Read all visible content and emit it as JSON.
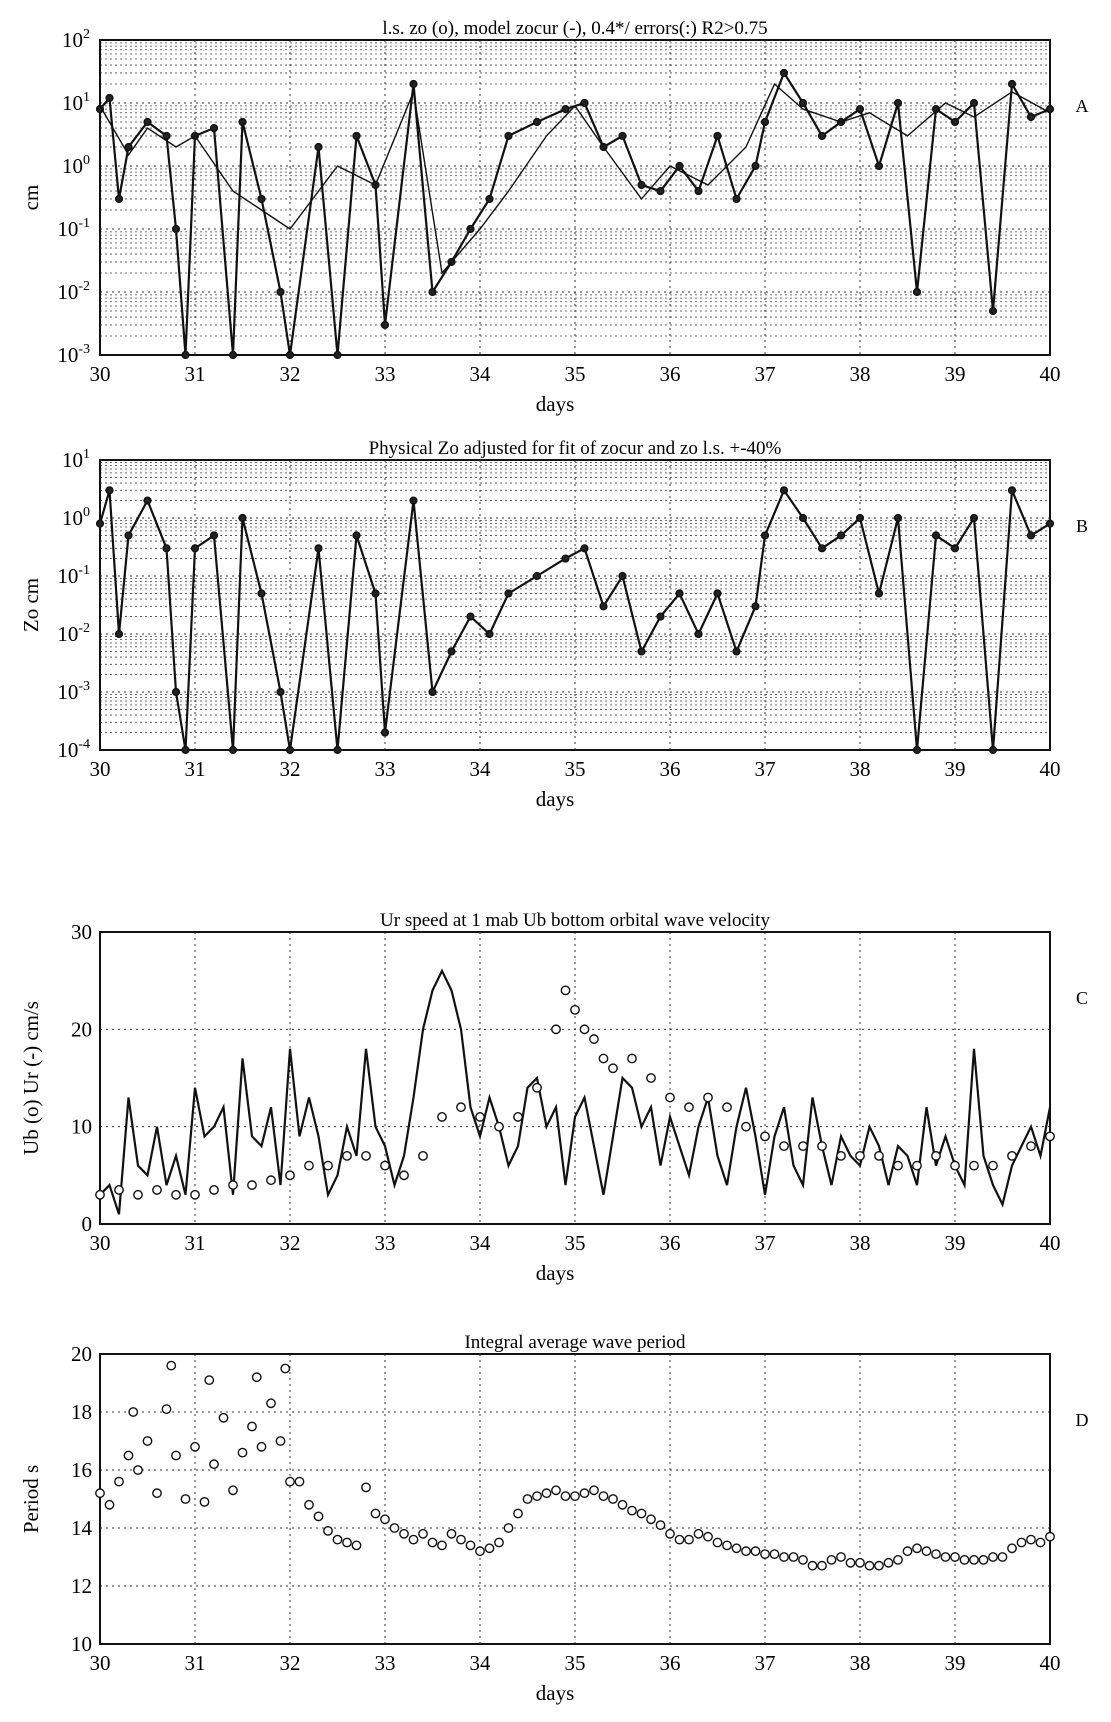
{
  "figure": {
    "panels": [
      {
        "id": "A",
        "letter": "A",
        "title": "l.s. zo (o), model zocur (-), 0.4*/ errors(:)  R2>0.75",
        "xlabel": "days",
        "ylabel": "cm",
        "yscale": "log",
        "ylim": [
          0.001,
          100
        ],
        "xlim": [
          30,
          40
        ],
        "yticks": [
          {
            "base": "10",
            "exp": "-3"
          },
          {
            "base": "10",
            "exp": "-2"
          },
          {
            "base": "10",
            "exp": "-1"
          },
          {
            "base": "10",
            "exp": "0"
          },
          {
            "base": "10",
            "exp": "1"
          },
          {
            "base": "10",
            "exp": "2"
          }
        ],
        "xticks": [
          "30",
          "31",
          "32",
          "33",
          "34",
          "35",
          "36",
          "37",
          "38",
          "39",
          "40"
        ]
      },
      {
        "id": "B",
        "letter": "B",
        "title": "Physical Zo adjusted for fit of zocur and zo l.s. +-40%",
        "xlabel": "days",
        "ylabel": "Zo cm",
        "yscale": "log",
        "ylim": [
          0.0001,
          10
        ],
        "xlim": [
          30,
          40
        ],
        "yticks": [
          {
            "base": "10",
            "exp": "-4"
          },
          {
            "base": "10",
            "exp": "-3"
          },
          {
            "base": "10",
            "exp": "-2"
          },
          {
            "base": "10",
            "exp": "-1"
          },
          {
            "base": "10",
            "exp": "0"
          },
          {
            "base": "10",
            "exp": "1"
          }
        ],
        "xticks": [
          "30",
          "31",
          "32",
          "33",
          "34",
          "35",
          "36",
          "37",
          "38",
          "39",
          "40"
        ]
      },
      {
        "id": "C",
        "letter": "C",
        "title": "Ur speed at 1 mab  Ub bottom orbital wave velocity",
        "xlabel": "days",
        "ylabel": "Ub (o)  Ur (-) cm/s",
        "yscale": "linear",
        "ylim": [
          0,
          30
        ],
        "xlim": [
          30,
          40
        ],
        "yticks": [
          "0",
          "10",
          "20",
          "30"
        ],
        "xticks": [
          "30",
          "31",
          "32",
          "33",
          "34",
          "35",
          "36",
          "37",
          "38",
          "39",
          "40"
        ]
      },
      {
        "id": "D",
        "letter": "D",
        "title": "Integral average wave period",
        "xlabel": "days",
        "ylabel": "Period s",
        "yscale": "linear",
        "ylim": [
          10,
          20
        ],
        "xlim": [
          30,
          40
        ],
        "yticks": [
          "10",
          "12",
          "14",
          "16",
          "18",
          "20"
        ],
        "xticks": [
          "30",
          "31",
          "32",
          "33",
          "34",
          "35",
          "36",
          "37",
          "38",
          "39",
          "40"
        ]
      }
    ]
  },
  "chart_data": [
    {
      "type": "line",
      "panel": "A",
      "title": "l.s. zo (o), model zocur (-), 0.4*/ errors(:)  R2>0.75",
      "xlabel": "days",
      "ylabel": "cm",
      "yscale": "log",
      "xlim": [
        30,
        40
      ],
      "ylim": [
        0.001,
        100
      ],
      "grid": true,
      "series": [
        {
          "x": [
            30.0,
            30.1,
            30.2,
            30.3,
            30.5,
            30.7,
            30.8,
            30.9,
            31.0,
            31.2,
            31.4,
            31.5,
            31.7,
            31.9,
            32.0,
            32.3,
            32.5,
            32.7,
            32.9,
            33.0,
            33.3,
            33.5,
            33.7,
            33.9,
            34.1,
            34.3,
            34.6,
            34.9,
            35.1,
            35.3,
            35.5,
            35.7,
            35.9,
            36.1,
            36.3,
            36.5,
            36.7,
            36.9,
            37.0,
            37.2,
            37.4,
            37.6,
            37.8,
            38.0,
            38.2,
            38.4,
            38.6,
            38.8,
            39.0,
            39.2,
            39.4,
            39.6,
            39.8,
            40.0
          ],
          "y": [
            8,
            12,
            0.3,
            2,
            5,
            3,
            0.1,
            0.001,
            3,
            4,
            0.001,
            5,
            0.3,
            0.01,
            0.001,
            2,
            0.001,
            3,
            0.5,
            0.003,
            20,
            0.01,
            0.03,
            0.1,
            0.3,
            3,
            5,
            8,
            10,
            2,
            3,
            0.5,
            0.4,
            1,
            0.4,
            3,
            0.3,
            1,
            5,
            30,
            10,
            3,
            5,
            8,
            1,
            10,
            0.01,
            8,
            5,
            10,
            0.005,
            20,
            6,
            8
          ]
        },
        {
          "x": [
            30.0,
            30.3,
            30.5,
            30.8,
            31.0,
            31.4,
            31.7,
            32.0,
            32.5,
            32.9,
            33.3,
            33.6,
            34.0,
            34.3,
            34.7,
            35.0,
            35.3,
            35.7,
            36.0,
            36.4,
            36.8,
            37.1,
            37.4,
            37.8,
            38.1,
            38.5,
            38.9,
            39.2,
            39.6,
            40.0
          ],
          "y": [
            9,
            1.5,
            4,
            2,
            3,
            0.4,
            0.2,
            0.1,
            1,
            0.5,
            15,
            0.02,
            0.1,
            0.4,
            3,
            9,
            2,
            0.3,
            1,
            0.5,
            2,
            20,
            8,
            5,
            7,
            3,
            10,
            6,
            15,
            7
          ]
        }
      ]
    },
    {
      "type": "line",
      "panel": "B",
      "title": "Physical Zo adjusted for fit of zocur and zo l.s. +-40%",
      "xlabel": "days",
      "ylabel": "Zo cm",
      "yscale": "log",
      "xlim": [
        30,
        40
      ],
      "ylim": [
        0.0001,
        10
      ],
      "grid": true,
      "series": [
        {
          "x": [
            30.0,
            30.1,
            30.2,
            30.3,
            30.5,
            30.7,
            30.8,
            30.9,
            31.0,
            31.2,
            31.4,
            31.5,
            31.7,
            31.9,
            32.0,
            32.3,
            32.5,
            32.7,
            32.9,
            33.0,
            33.3,
            33.5,
            33.7,
            33.9,
            34.1,
            34.3,
            34.6,
            34.9,
            35.1,
            35.3,
            35.5,
            35.7,
            35.9,
            36.1,
            36.3,
            36.5,
            36.7,
            36.9,
            37.0,
            37.2,
            37.4,
            37.6,
            37.8,
            38.0,
            38.2,
            38.4,
            38.6,
            38.8,
            39.0,
            39.2,
            39.4,
            39.6,
            39.8,
            40.0
          ],
          "y": [
            0.8,
            3,
            0.01,
            0.5,
            2,
            0.3,
            0.001,
            0.0001,
            0.3,
            0.5,
            0.0001,
            1,
            0.05,
            0.001,
            0.0001,
            0.3,
            0.0001,
            0.5,
            0.05,
            0.0002,
            2,
            0.001,
            0.005,
            0.02,
            0.01,
            0.05,
            0.1,
            0.2,
            0.3,
            0.03,
            0.1,
            0.005,
            0.02,
            0.05,
            0.01,
            0.05,
            0.005,
            0.03,
            0.5,
            3,
            1,
            0.3,
            0.5,
            1,
            0.05,
            1,
            0.0001,
            0.5,
            0.3,
            1,
            0.0001,
            3,
            0.5,
            0.8
          ]
        }
      ]
    },
    {
      "type": "line",
      "panel": "C",
      "title": "Ur speed at 1 mab  Ub bottom orbital wave velocity",
      "xlabel": "days",
      "ylabel": "Ub (o)  Ur (-) cm/s",
      "xlim": [
        30,
        40
      ],
      "ylim": [
        0,
        30
      ],
      "grid": true,
      "series": [
        {
          "x": [
            30.0,
            30.1,
            30.2,
            30.3,
            30.4,
            30.5,
            30.6,
            30.7,
            30.8,
            30.9,
            31.0,
            31.1,
            31.2,
            31.3,
            31.4,
            31.5,
            31.6,
            31.7,
            31.8,
            31.9,
            32.0,
            32.1,
            32.2,
            32.3,
            32.4,
            32.5,
            32.6,
            32.7,
            32.8,
            32.9,
            33.0,
            33.1,
            33.2,
            33.3,
            33.4,
            33.5,
            33.6,
            33.7,
            33.8,
            33.9,
            34.0,
            34.1,
            34.2,
            34.3,
            34.4,
            34.5,
            34.6,
            34.7,
            34.8,
            34.9,
            35.0,
            35.1,
            35.2,
            35.3,
            35.4,
            35.5,
            35.6,
            35.7,
            35.8,
            35.9,
            36.0,
            36.1,
            36.2,
            36.3,
            36.4,
            36.5,
            36.6,
            36.7,
            36.8,
            36.9,
            37.0,
            37.1,
            37.2,
            37.3,
            37.4,
            37.5,
            37.6,
            37.7,
            37.8,
            37.9,
            38.0,
            38.1,
            38.2,
            38.3,
            38.4,
            38.5,
            38.6,
            38.7,
            38.8,
            38.9,
            39.0,
            39.1,
            39.2,
            39.3,
            39.4,
            39.5,
            39.6,
            39.7,
            39.8,
            39.9,
            40.0
          ],
          "y": [
            3,
            4,
            1,
            13,
            6,
            5,
            10,
            4,
            7,
            3,
            14,
            9,
            10,
            12,
            3,
            17,
            9,
            8,
            12,
            4,
            18,
            9,
            13,
            9,
            3,
            5,
            10,
            7,
            18,
            10,
            8,
            4,
            7,
            13,
            20,
            24,
            26,
            24,
            20,
            12,
            9,
            13,
            10,
            6,
            8,
            14,
            15,
            10,
            12,
            4,
            11,
            13,
            8,
            3,
            9,
            15,
            14,
            10,
            12,
            6,
            11,
            8,
            5,
            10,
            13,
            7,
            4,
            10,
            14,
            9,
            3,
            9,
            12,
            6,
            4,
            13,
            8,
            4,
            9,
            7,
            6,
            10,
            8,
            4,
            8,
            7,
            4,
            12,
            6,
            9,
            6,
            4,
            18,
            7,
            4,
            2,
            6,
            8,
            10,
            7,
            12
          ]
        },
        {
          "x": [
            30.0,
            30.2,
            30.4,
            30.6,
            30.8,
            31.0,
            31.2,
            31.4,
            31.6,
            31.8,
            32.0,
            32.2,
            32.4,
            32.6,
            32.8,
            33.0,
            33.2,
            33.4,
            33.6,
            33.8,
            34.0,
            34.2,
            34.4,
            34.6,
            34.8,
            34.9,
            35.0,
            35.1,
            35.2,
            35.3,
            35.4,
            35.6,
            35.8,
            36.0,
            36.2,
            36.4,
            36.6,
            36.8,
            37.0,
            37.2,
            37.4,
            37.6,
            37.8,
            38.0,
            38.2,
            38.4,
            38.6,
            38.8,
            39.0,
            39.2,
            39.4,
            39.6,
            39.8,
            40.0
          ],
          "y": [
            3,
            3.5,
            3,
            3.5,
            3,
            3,
            3.5,
            4,
            4,
            4.5,
            5,
            6,
            6,
            7,
            7,
            6,
            5,
            7,
            11,
            12,
            11,
            10,
            11,
            14,
            20,
            24,
            22,
            20,
            19,
            17,
            16,
            17,
            15,
            13,
            12,
            13,
            12,
            10,
            9,
            8,
            8,
            8,
            7,
            7,
            7,
            6,
            6,
            7,
            6,
            6,
            6,
            7,
            8,
            9
          ]
        }
      ]
    },
    {
      "type": "scatter",
      "panel": "D",
      "title": "Integral average wave period",
      "xlabel": "days",
      "ylabel": "Period s",
      "xlim": [
        30,
        40
      ],
      "ylim": [
        10,
        20
      ],
      "grid": true,
      "series": [
        {
          "x": [
            30.0,
            30.1,
            30.2,
            30.3,
            30.35,
            30.4,
            30.5,
            30.6,
            30.7,
            30.75,
            30.8,
            30.9,
            31.0,
            31.1,
            31.15,
            31.2,
            31.3,
            31.4,
            31.5,
            31.6,
            31.65,
            31.7,
            31.8,
            31.9,
            31.95,
            32.0,
            32.1,
            32.2,
            32.3,
            32.4,
            32.5,
            32.6,
            32.7,
            32.8,
            32.9,
            33.0,
            33.1,
            33.2,
            33.3,
            33.4,
            33.5,
            33.6,
            33.7,
            33.8,
            33.9,
            34.0,
            34.1,
            34.2,
            34.3,
            34.4,
            34.5,
            34.6,
            34.7,
            34.8,
            34.9,
            35.0,
            35.1,
            35.2,
            35.3,
            35.4,
            35.5,
            35.6,
            35.7,
            35.8,
            35.9,
            36.0,
            36.1,
            36.2,
            36.3,
            36.4,
            36.5,
            36.6,
            36.7,
            36.8,
            36.9,
            37.0,
            37.1,
            37.2,
            37.3,
            37.4,
            37.5,
            37.6,
            37.7,
            37.8,
            37.9,
            38.0,
            38.1,
            38.2,
            38.3,
            38.4,
            38.5,
            38.6,
            38.7,
            38.8,
            38.9,
            39.0,
            39.1,
            39.2,
            39.3,
            39.4,
            39.5,
            39.6,
            39.7,
            39.8,
            39.9,
            40.0
          ],
          "y": [
            15.2,
            14.8,
            15.6,
            16.5,
            18.0,
            16.0,
            17.0,
            15.2,
            18.1,
            19.6,
            16.5,
            15.0,
            16.8,
            14.9,
            19.1,
            16.2,
            17.8,
            15.3,
            16.6,
            17.5,
            19.2,
            16.8,
            18.3,
            17.0,
            19.5,
            15.6,
            15.6,
            14.8,
            14.4,
            13.9,
            13.6,
            13.5,
            13.4,
            15.4,
            14.5,
            14.3,
            14.0,
            13.8,
            13.6,
            13.8,
            13.5,
            13.4,
            13.8,
            13.6,
            13.4,
            13.2,
            13.3,
            13.5,
            14.0,
            14.5,
            15.0,
            15.1,
            15.2,
            15.3,
            15.1,
            15.1,
            15.2,
            15.3,
            15.1,
            15.0,
            14.8,
            14.6,
            14.5,
            14.3,
            14.1,
            13.8,
            13.6,
            13.6,
            13.8,
            13.7,
            13.5,
            13.4,
            13.3,
            13.2,
            13.2,
            13.1,
            13.1,
            13.0,
            13.0,
            12.9,
            12.7,
            12.7,
            12.9,
            13.0,
            12.8,
            12.8,
            12.7,
            12.7,
            12.8,
            12.9,
            13.2,
            13.3,
            13.2,
            13.1,
            13.0,
            13.0,
            12.9,
            12.9,
            12.9,
            13.0,
            13.0,
            13.3,
            13.5,
            13.6,
            13.5,
            13.7
          ]
        }
      ]
    }
  ]
}
